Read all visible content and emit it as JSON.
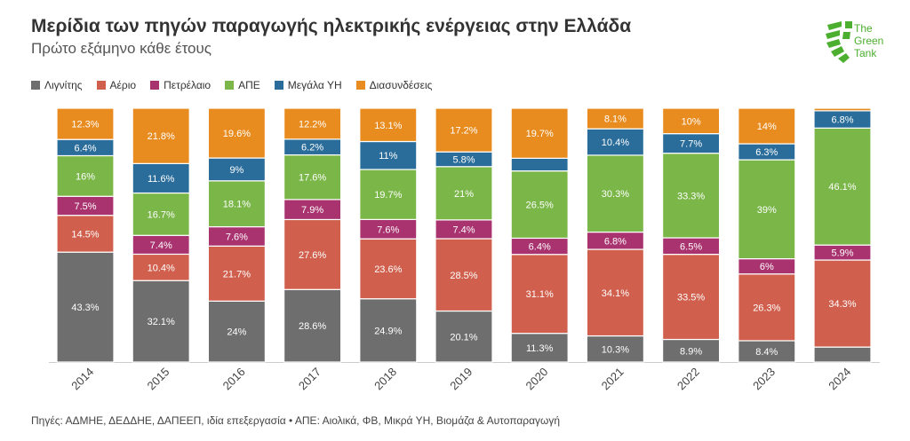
{
  "header": {
    "title": "Μερίδια των πηγών παραγωγής ηλεκτρικής ενέργειας στην Ελλάδα",
    "subtitle": "Πρώτο εξάμηνο κάθε έτους"
  },
  "logo": {
    "line1": "The",
    "line2": "Green",
    "line3": "Tank",
    "color": "#4caf2f"
  },
  "footer": {
    "source": "Πηγές: ΑΔΜΗΕ, ΔΕΔΔΗΕ, ΔΑΠΕΕΠ, ιδία επεξεργασία • ΑΠΕ: Αιολικά, ΦΒ, Μικρά ΥΗ, Βιομάζα & Αυτοπαραγωγή"
  },
  "chart_data": {
    "type": "bar",
    "stacked": true,
    "percent_stacked": true,
    "legend_position": "top-left",
    "categories": [
      "2014",
      "2015",
      "2016",
      "2017",
      "2018",
      "2019",
      "2020",
      "2021",
      "2022",
      "2023",
      "2024"
    ],
    "series": [
      {
        "name": "Λιγνίτης",
        "color": "#6e6e6e",
        "values": [
          43.3,
          32.1,
          24,
          28.6,
          24.9,
          20.1,
          11.3,
          10.3,
          8.9,
          8.4,
          5.9
        ]
      },
      {
        "name": "Αέριο",
        "color": "#d0604d",
        "values": [
          14.5,
          10.4,
          21.7,
          27.6,
          23.6,
          28.5,
          31.1,
          34.1,
          33.5,
          26.3,
          34.3
        ]
      },
      {
        "name": "Πετρέλαιο",
        "color": "#a8336f",
        "values": [
          7.5,
          7.4,
          7.6,
          7.9,
          7.6,
          7.4,
          6.4,
          6.8,
          6.5,
          6,
          5.9
        ]
      },
      {
        "name": "ΑΠΕ",
        "color": "#7ab648",
        "values": [
          16,
          16.7,
          18.1,
          17.6,
          19.7,
          21,
          26.5,
          30.3,
          33.3,
          39,
          46.1
        ]
      },
      {
        "name": "Μεγάλα ΥΗ",
        "color": "#2a6d9a",
        "values": [
          6.4,
          11.6,
          9,
          6.2,
          11,
          5.8,
          5,
          10.4,
          7.7,
          6.3,
          6.8
        ]
      },
      {
        "name": "Διασυνδέσεις",
        "color": "#e98c1f",
        "values": [
          12.3,
          21.8,
          19.6,
          12.2,
          13.1,
          17.2,
          19.7,
          8.1,
          10,
          14,
          1
        ]
      }
    ],
    "labels": [
      [
        "43.3%",
        "14.5%",
        "7.5%",
        "16%",
        "6.4%",
        "12.3%"
      ],
      [
        "32.1%",
        "10.4%",
        "7.4%",
        "16.7%",
        "11.6%",
        "21.8%"
      ],
      [
        "24%",
        "21.7%",
        "7.6%",
        "18.1%",
        "9%",
        "19.6%"
      ],
      [
        "28.6%",
        "27.6%",
        "7.9%",
        "17.6%",
        "6.2%",
        "12.2%"
      ],
      [
        "24.9%",
        "23.6%",
        "7.6%",
        "19.7%",
        "11%",
        "13.1%"
      ],
      [
        "20.1%",
        "28.5%",
        "7.4%",
        "21%",
        "5.8%",
        "17.2%"
      ],
      [
        "11.3%",
        "31.1%",
        "6.4%",
        "26.5%",
        "",
        "19.7%"
      ],
      [
        "10.3%",
        "34.1%",
        "6.8%",
        "30.3%",
        "10.4%",
        "8.1%"
      ],
      [
        "8.9%",
        "33.5%",
        "6.5%",
        "33.3%",
        "7.7%",
        "10%"
      ],
      [
        "8.4%",
        "26.3%",
        "6%",
        "39%",
        "6.3%",
        "14%"
      ],
      [
        "",
        "34.3%",
        "5.9%",
        "46.1%",
        "6.8%",
        ""
      ]
    ],
    "ylim": [
      0,
      100
    ]
  }
}
